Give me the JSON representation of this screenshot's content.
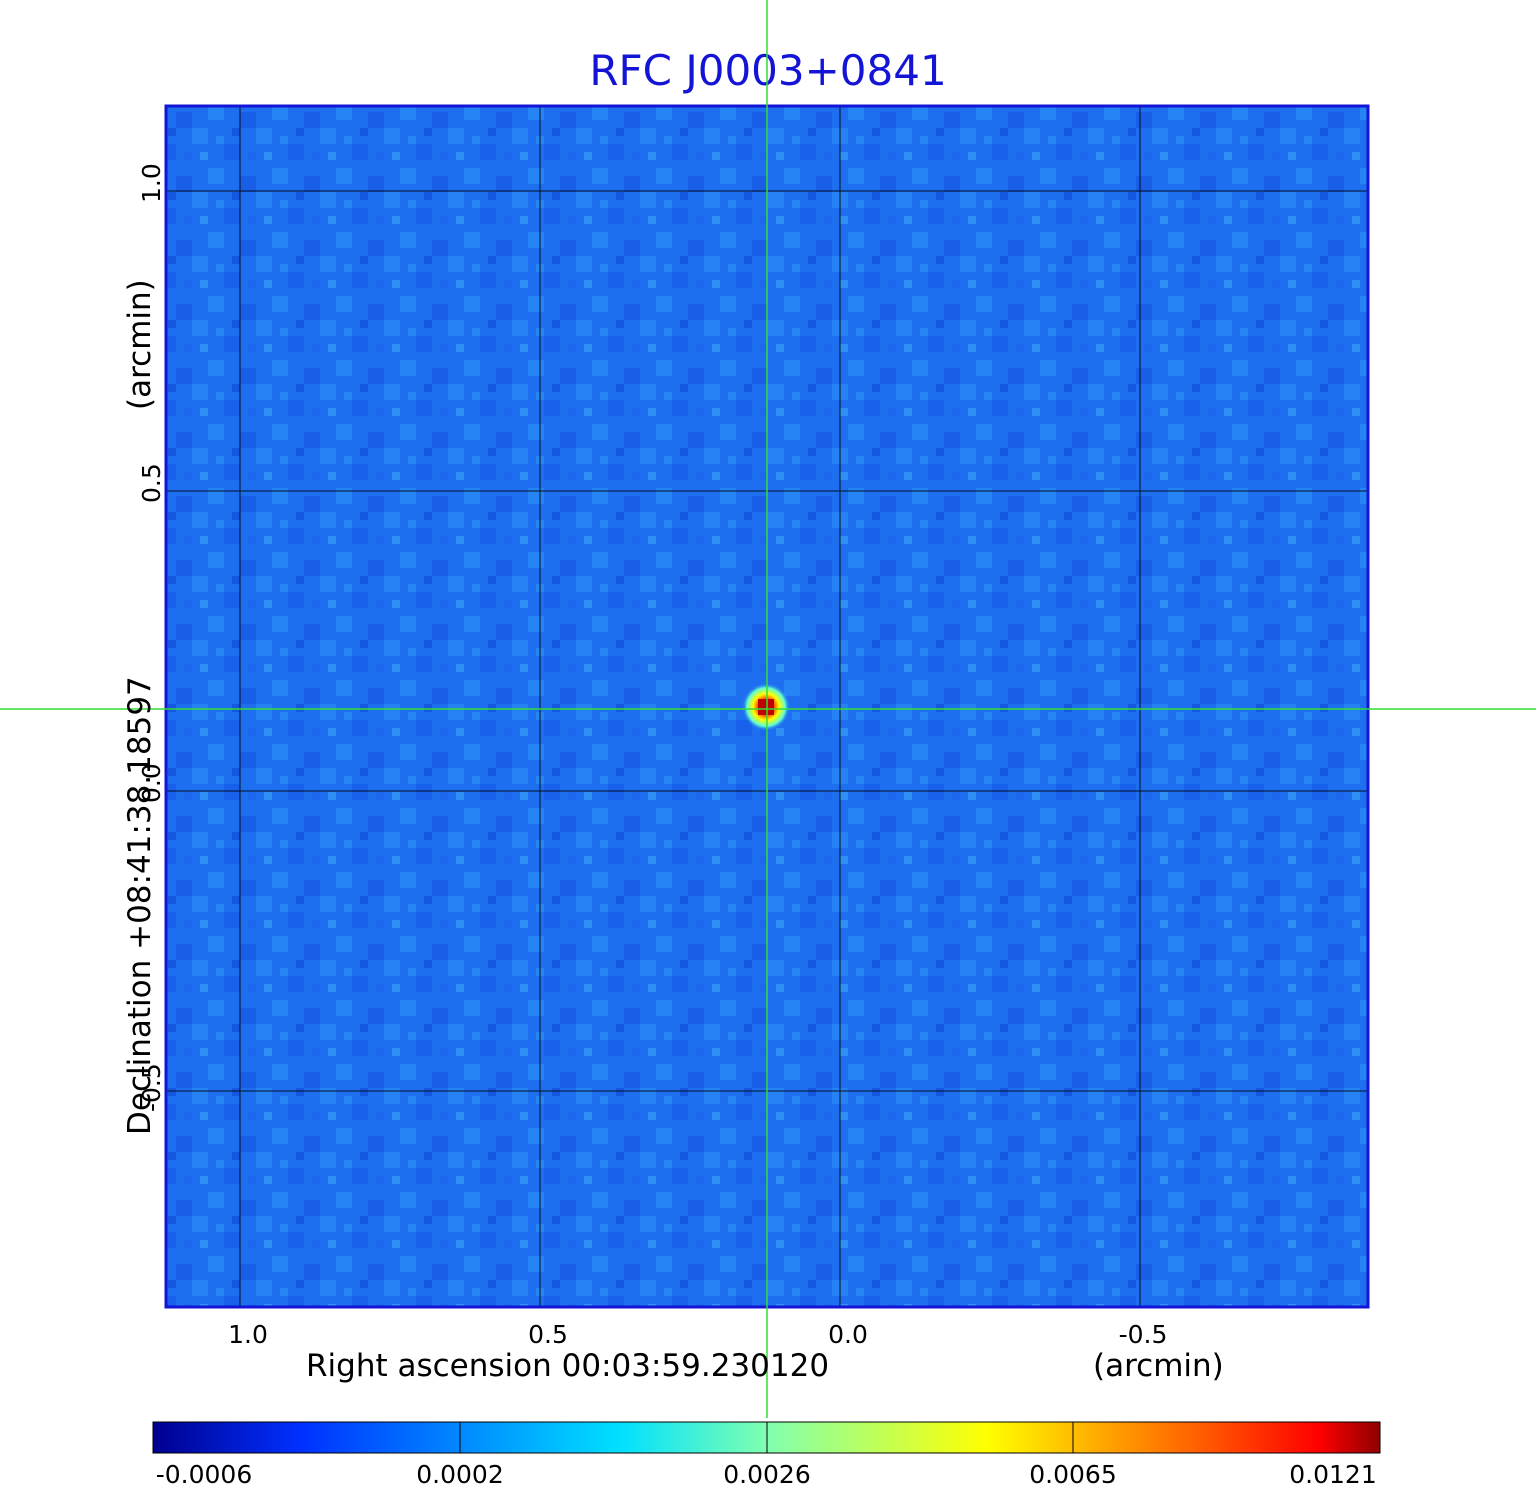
{
  "title": "RFC J0003+0841",
  "x_axis": {
    "label": "Right ascension  00:03:59.230120",
    "unit": "(arcmin)",
    "ticks": [
      "1.0",
      "0.5",
      "0.0",
      "-0.5"
    ]
  },
  "y_axis": {
    "label": "Declination  +08:41:38.18597",
    "unit": "(arcmin)",
    "ticks": [
      "1.0",
      "0.5",
      "0.0",
      "-0.5"
    ]
  },
  "colorbar": {
    "ticks": [
      "-0.0006",
      "0.0002",
      "0.0026",
      "0.0065",
      "0.0121"
    ],
    "colors": [
      "#00008f",
      "#0040ff",
      "#00d0ff",
      "#40ffd0",
      "#ffff00",
      "#ff8000",
      "#ff0000",
      "#8f0000"
    ]
  },
  "colors": {
    "title": "#1414d6",
    "crosshair": "#33dd33",
    "frame": "#1414d6",
    "background": "#1e6ff0"
  }
}
